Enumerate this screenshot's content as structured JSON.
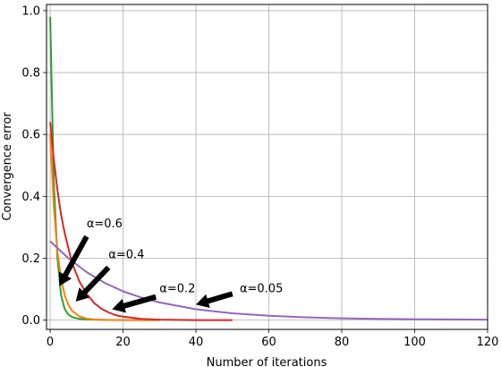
{
  "chart_data": {
    "type": "line",
    "title": "",
    "xlabel": "Number of iterations",
    "ylabel": "Convergence error",
    "xlim": [
      -1,
      120
    ],
    "ylim": [
      -0.03,
      1.02
    ],
    "x_ticks": [
      0,
      20,
      40,
      60,
      80,
      100,
      120
    ],
    "y_ticks": [
      0.0,
      0.2,
      0.4,
      0.6,
      0.8,
      1.0
    ],
    "grid": true,
    "legend": "none",
    "series": [
      {
        "color": "#2ca02c",
        "x": [
          0,
          1,
          2,
          3,
          4,
          5,
          6,
          8,
          10,
          15,
          20,
          30
        ],
        "y": [
          0.98,
          0.45,
          0.2,
          0.08,
          0.035,
          0.018,
          0.01,
          0.004,
          0.002,
          0.0008,
          0.0004,
          0.0001
        ]
      },
      {
        "color": "#ff7f0e",
        "x": [
          0,
          1,
          2,
          3,
          4,
          5,
          6,
          8,
          10,
          12,
          15,
          20,
          25,
          30
        ],
        "y": [
          0.6,
          0.37,
          0.22,
          0.135,
          0.08,
          0.05,
          0.03,
          0.012,
          0.005,
          0.002,
          0.0008,
          0.0002,
          0.0001,
          0.0
        ]
      },
      {
        "color": "#d62728",
        "x": [
          0,
          1,
          2,
          3,
          4,
          6,
          8,
          10,
          12,
          14,
          16,
          18,
          20,
          25,
          30,
          40,
          50
        ],
        "y": [
          0.64,
          0.52,
          0.42,
          0.34,
          0.28,
          0.185,
          0.125,
          0.085,
          0.056,
          0.037,
          0.025,
          0.016,
          0.011,
          0.004,
          0.0015,
          0.0002,
          0.0
        ]
      },
      {
        "color": "#9467bd",
        "x": [
          0,
          5,
          10,
          15,
          20,
          25,
          30,
          40,
          50,
          60,
          70,
          80,
          90,
          100,
          110,
          120
        ],
        "y": [
          0.255,
          0.2,
          0.155,
          0.12,
          0.093,
          0.073,
          0.057,
          0.035,
          0.022,
          0.014,
          0.009,
          0.006,
          0.004,
          0.003,
          0.002,
          0.0015
        ]
      }
    ],
    "annotations": [
      {
        "text": "α=0.6",
        "text_x": 10,
        "text_y": 0.3,
        "arrow_from_x": 10,
        "arrow_from_y": 0.27,
        "arrow_to_x": 2.5,
        "arrow_to_y": 0.11
      },
      {
        "text": "α=0.4",
        "text_x": 16,
        "text_y": 0.2,
        "arrow_from_x": 16,
        "arrow_from_y": 0.17,
        "arrow_to_x": 7,
        "arrow_to_y": 0.06
      },
      {
        "text": "α=0.2",
        "text_x": 30,
        "text_y": 0.09,
        "arrow_from_x": 29,
        "arrow_from_y": 0.075,
        "arrow_to_x": 17,
        "arrow_to_y": 0.035
      },
      {
        "text": "α=0.05",
        "text_x": 52,
        "text_y": 0.09,
        "arrow_from_x": 50,
        "arrow_from_y": 0.085,
        "arrow_to_x": 40,
        "arrow_to_y": 0.05
      }
    ]
  }
}
